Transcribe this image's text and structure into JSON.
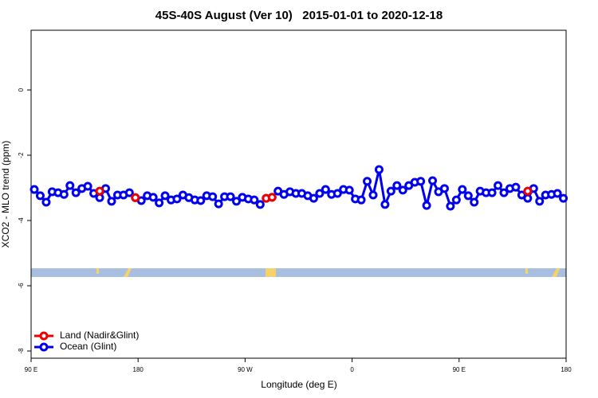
{
  "chart_data": {
    "type": "line",
    "title": "45S-40S August (Ver 10)   2015-01-01 to 2020-12-18",
    "xlabel": "Longitude (deg E)",
    "ylabel": "XCO2 - MLO trend (ppm)",
    "xlim": [
      90,
      540
    ],
    "ylim": [
      -8.22,
      1.83
    ],
    "xticks": [
      {
        "value": 90,
        "label": "90 E"
      },
      180,
      {
        "value": 270,
        "label": "90 W"
      },
      {
        "value": 360,
        "label": "0"
      },
      {
        "value": 450,
        "label": "90 E"
      },
      {
        "value": 540,
        "label": "180"
      }
    ],
    "yticks": [
      0,
      -2,
      -4,
      -6,
      -8
    ],
    "legend": "bottom-left",
    "x": [
      92.7,
      97.7,
      102.7,
      107.7,
      112.7,
      117.7,
      122.7,
      127.7,
      132.7,
      137.7,
      142.7,
      147.7,
      152.7,
      157.7,
      162.7,
      167.7,
      172.7,
      177.7,
      182.7,
      187.7,
      192.7,
      197.7,
      202.7,
      207.7,
      212.7,
      217.7,
      222.7,
      227.7,
      232.7,
      237.7,
      242.7,
      247.7,
      252.7,
      257.7,
      262.7,
      267.7,
      272.7,
      277.7,
      282.7,
      287.7,
      292.7,
      297.7,
      302.7,
      307.7,
      312.7,
      317.7,
      322.7,
      327.7,
      332.7,
      337.7,
      342.7,
      347.7,
      352.7,
      357.7,
      362.7,
      367.7,
      372.7,
      377.7,
      382.7,
      387.7,
      392.7,
      397.7,
      402.7,
      407.7,
      412.7,
      417.7,
      422.7,
      427.7,
      432.7,
      437.7,
      442.7,
      447.7,
      452.7,
      457.7,
      462.7,
      467.7,
      472.7,
      477.7,
      482.7,
      487.7,
      492.7,
      497.7,
      502.7,
      507.7,
      512.7,
      517.7,
      522.7,
      527.7,
      532.7,
      537.7
    ],
    "series": [
      {
        "name": "Ocean (Glint)",
        "color": "#0000ee",
        "values": [
          -3.05,
          -3.24,
          -3.44,
          -3.12,
          -3.15,
          -3.2,
          -2.93,
          -3.15,
          -3.02,
          -2.95,
          -3.17,
          -3.3,
          -3.02,
          -3.41,
          -3.22,
          -3.22,
          -3.15,
          -3.3,
          -3.39,
          -3.24,
          -3.29,
          -3.46,
          -3.24,
          -3.37,
          -3.34,
          -3.22,
          -3.3,
          -3.37,
          -3.39,
          -3.24,
          -3.27,
          -3.49,
          -3.27,
          -3.27,
          -3.41,
          -3.29,
          -3.34,
          -3.37,
          -3.51,
          -3.32,
          -3.29,
          -3.1,
          -3.2,
          -3.12,
          -3.17,
          -3.17,
          -3.24,
          -3.32,
          -3.17,
          -3.05,
          -3.2,
          -3.17,
          -3.05,
          -3.07,
          -3.34,
          -3.37,
          -2.8,
          -3.22,
          -2.44,
          -3.51,
          -3.1,
          -2.93,
          -3.07,
          -2.93,
          -2.83,
          -2.8,
          -3.54,
          -2.78,
          -3.12,
          -3.02,
          -3.56,
          -3.37,
          -3.05,
          -3.24,
          -3.44,
          -3.1,
          -3.15,
          -3.15,
          -2.93,
          -3.15,
          -3.02,
          -2.98,
          -3.22,
          -3.32,
          -3.02,
          -3.41,
          -3.22,
          -3.2,
          -3.17,
          -3.32
        ]
      },
      {
        "name": "Land (Nadir&Glint)",
        "color": "#ee0000",
        "values": [
          null,
          null,
          null,
          null,
          null,
          null,
          null,
          null,
          null,
          null,
          null,
          -3.1,
          null,
          null,
          null,
          null,
          null,
          -3.3,
          null,
          null,
          null,
          null,
          null,
          null,
          null,
          null,
          null,
          null,
          null,
          null,
          null,
          null,
          null,
          null,
          null,
          null,
          null,
          null,
          null,
          -3.32,
          -3.29,
          null,
          null,
          null,
          null,
          null,
          null,
          null,
          null,
          null,
          null,
          null,
          null,
          null,
          null,
          null,
          null,
          null,
          null,
          null,
          null,
          null,
          null,
          null,
          null,
          null,
          null,
          null,
          null,
          null,
          null,
          null,
          null,
          null,
          null,
          null,
          null,
          null,
          null,
          null,
          null,
          null,
          null,
          -3.1,
          null,
          null,
          null,
          null,
          null,
          null
        ]
      }
    ]
  }
}
